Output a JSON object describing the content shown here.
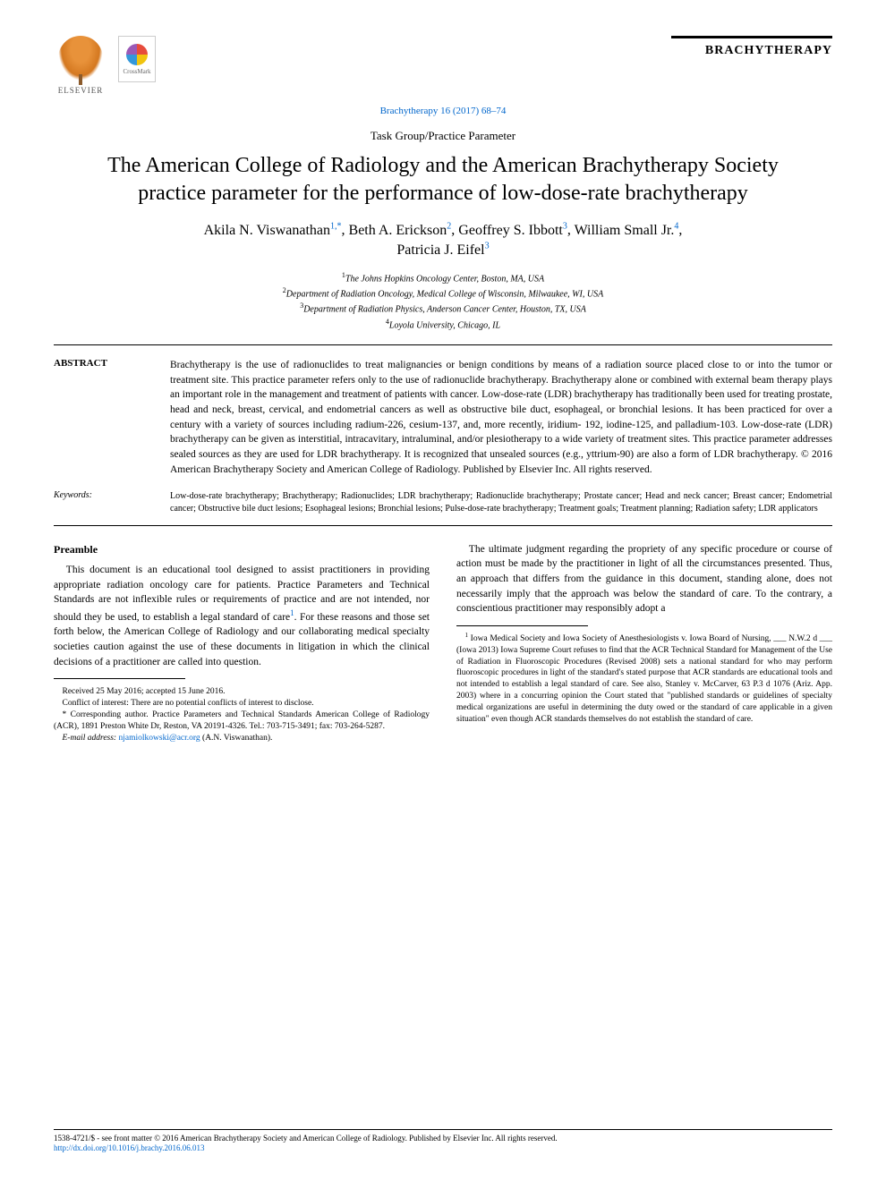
{
  "header": {
    "publisher": "ELSEVIER",
    "crossmark": "CrossMark",
    "journal_brand": "BRACHYTHERAPY",
    "citation": "Brachytherapy 16 (2017) 68–74",
    "article_type": "Task Group/Practice Parameter"
  },
  "title": "The American College of Radiology and the American Brachytherapy Society practice parameter for the performance of low-dose-rate brachytherapy",
  "authors": [
    {
      "name": "Akila N. Viswanathan",
      "aff": "1,*"
    },
    {
      "name": "Beth A. Erickson",
      "aff": "2"
    },
    {
      "name": "Geoffrey S. Ibbott",
      "aff": "3"
    },
    {
      "name": "William Small Jr.",
      "aff": "4"
    },
    {
      "name": "Patricia J. Eifel",
      "aff": "3"
    }
  ],
  "affiliations": [
    {
      "num": "1",
      "text": "The Johns Hopkins Oncology Center, Boston, MA, USA"
    },
    {
      "num": "2",
      "text": "Department of Radiation Oncology, Medical College of Wisconsin, Milwaukee, WI, USA"
    },
    {
      "num": "3",
      "text": "Department of Radiation Physics, Anderson Cancer Center, Houston, TX, USA"
    },
    {
      "num": "4",
      "text": "Loyola University, Chicago, IL"
    }
  ],
  "abstract": {
    "label": "ABSTRACT",
    "text": "Brachytherapy is the use of radionuclides to treat malignancies or benign conditions by means of a radiation source placed close to or into the tumor or treatment site. This practice parameter refers only to the use of radionuclide brachytherapy. Brachytherapy alone or combined with external beam therapy plays an important role in the management and treatment of patients with cancer. Low-dose-rate (LDR) brachytherapy has traditionally been used for treating prostate, head and neck, breast, cervical, and endometrial cancers as well as obstructive bile duct, esophageal, or bronchial lesions. It has been practiced for over a century with a variety of sources including radium-226, cesium-137, and, more recently, iridium- 192, iodine-125, and palladium-103. Low-dose-rate (LDR) brachytherapy can be given as interstitial, intracavitary, intraluminal, and/or plesiotherapy to a wide variety of treatment sites. This practice parameter addresses sealed sources as they are used for LDR brachytherapy. It is recognized that unsealed sources (e.g., yttrium-90) are also a form of LDR brachytherapy. © 2016 American Brachytherapy Society and American College of Radiology. Published by Elsevier Inc. All rights reserved."
  },
  "keywords": {
    "label": "Keywords:",
    "text": "Low-dose-rate brachytherapy; Brachytherapy; Radionuclides; LDR brachytherapy; Radionuclide brachytherapy; Prostate cancer; Head and neck cancer; Breast cancer; Endometrial cancer; Obstructive bile duct lesions; Esophageal lesions; Bronchial lesions; Pulse-dose-rate brachytherapy; Treatment goals; Treatment planning; Radiation safety; LDR applicators"
  },
  "preamble": {
    "heading": "Preamble",
    "para1": "This document is an educational tool designed to assist practitioners in providing appropriate radiation oncology care for patients. Practice Parameters and Technical Standards are not inflexible rules or requirements of practice and are not intended, nor should they be used, to establish a legal standard of care",
    "fn_marker": "1",
    "para1_cont": ". For these reasons and those set forth below, the American College of Radiology and our collaborating medical specialty societies caution against the use of these documents in litigation in which the clinical decisions of a practitioner are called into question.",
    "para2": "The ultimate judgment regarding the propriety of any specific procedure or course of action must be made by the practitioner in light of all the circumstances presented. Thus, an approach that differs from the guidance in this document, standing alone, does not necessarily imply that the approach was below the standard of care. To the contrary, a conscientious practitioner may responsibly adopt a"
  },
  "left_footnotes": {
    "received": "Received 25 May 2016; accepted 15 June 2016.",
    "conflict": "Conflict of interest: There are no potential conflicts of interest to disclose.",
    "corresponding": "* Corresponding author. Practice Parameters and Technical Standards American College of Radiology (ACR), 1891 Preston White Dr, Reston, VA 20191-4326. Tel.: 703-715-3491; fax: 703-264-5287.",
    "email_label": "E-mail address:",
    "email": "njamiolkowski@acr.org",
    "email_name": "(A.N. Viswanathan)."
  },
  "right_footnote": {
    "marker": "1",
    "text": " Iowa Medical Society and Iowa Society of Anesthesiologists v. Iowa Board of Nursing, ___ N.W.2 d ___ (Iowa 2013) Iowa Supreme Court refuses to find that the ACR Technical Standard for Management of the Use of Radiation in Fluoroscopic Procedures (Revised 2008) sets a national standard for who may perform fluoroscopic procedures in light of the standard's stated purpose that ACR standards are educational tools and not intended to establish a legal standard of care. See also, Stanley v. McCarver, 63 P.3 d 1076 (Ariz. App. 2003) where in a concurring opinion the Court stated that \"published standards or guidelines of specialty medical organizations are useful in determining the duty owed or the standard of care applicable in a given situation\" even though ACR standards themselves do not establish the standard of care."
  },
  "bottom": {
    "copyright": "1538-4721/$ - see front matter © 2016 American Brachytherapy Society and American College of Radiology. Published by Elsevier Inc. All rights reserved.",
    "doi": "http://dx.doi.org/10.1016/j.brachy.2016.06.013"
  },
  "colors": {
    "link": "#0066cc",
    "text": "#000000",
    "bg": "#ffffff"
  }
}
